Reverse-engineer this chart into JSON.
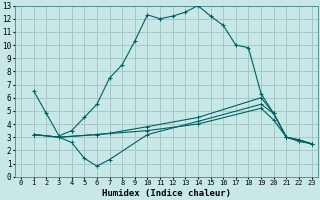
{
  "xlabel": "Humidex (Indice chaleur)",
  "bg_color": "#c8e8e8",
  "grid_color": "#a8c8c8",
  "line_color": "#006060",
  "xlim": [
    -0.5,
    23.5
  ],
  "ylim": [
    0,
    13
  ],
  "xticks": [
    0,
    1,
    2,
    3,
    4,
    5,
    6,
    7,
    8,
    9,
    10,
    11,
    12,
    13,
    14,
    15,
    16,
    17,
    18,
    19,
    20,
    21,
    22,
    23
  ],
  "yticks": [
    0,
    1,
    2,
    3,
    4,
    5,
    6,
    7,
    8,
    9,
    10,
    11,
    12,
    13
  ],
  "curve1_x": [
    1,
    2,
    3,
    4,
    5,
    6,
    7,
    8,
    9,
    10,
    11,
    12,
    13,
    14,
    15,
    16,
    17,
    18,
    19,
    20,
    21,
    22,
    23
  ],
  "curve1_y": [
    6.5,
    4.8,
    3.1,
    3.5,
    4.5,
    5.5,
    7.5,
    8.5,
    10.3,
    12.3,
    12.0,
    12.2,
    12.5,
    13.0,
    12.2,
    11.5,
    10.0,
    9.8,
    6.3,
    4.8,
    3.0,
    2.7,
    2.5
  ],
  "curve2_x": [
    1,
    3,
    6,
    7,
    10,
    14,
    19,
    20,
    21,
    22,
    23
  ],
  "curve2_y": [
    3.2,
    3.0,
    3.2,
    3.3,
    3.8,
    4.5,
    6.0,
    4.8,
    3.0,
    2.8,
    2.5
  ],
  "curve3_x": [
    1,
    3,
    4,
    5,
    6,
    7,
    10,
    14,
    19,
    20,
    21,
    22,
    23
  ],
  "curve3_y": [
    3.2,
    3.0,
    2.6,
    1.4,
    0.8,
    1.3,
    3.2,
    4.2,
    5.5,
    4.8,
    3.0,
    2.8,
    2.5
  ],
  "curve4_x": [
    1,
    3,
    6,
    10,
    14,
    19,
    20,
    21,
    22,
    23
  ],
  "curve4_y": [
    3.2,
    3.0,
    3.2,
    3.5,
    4.0,
    5.2,
    4.3,
    3.0,
    2.7,
    2.5
  ]
}
